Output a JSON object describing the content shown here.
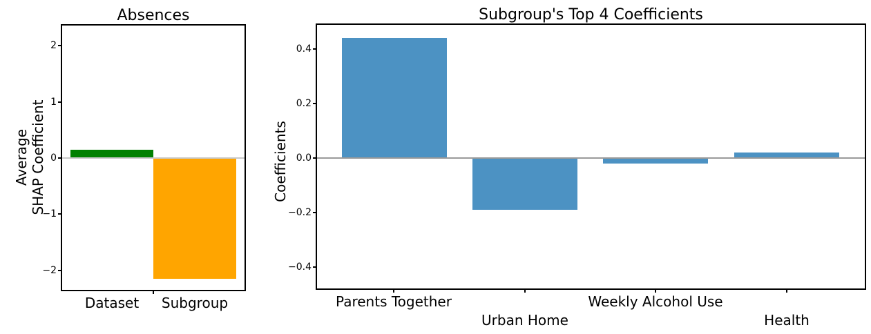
{
  "figure": {
    "background": "#ffffff"
  },
  "chart_data": [
    {
      "type": "bar",
      "title": "Absences",
      "ylabel": "Average\nSHAP Coefficient",
      "categories": [
        "Dataset",
        "Subgroup"
      ],
      "values": [
        0.15,
        -2.15
      ],
      "bar_colors": [
        "#008000",
        "#FFA500"
      ],
      "ytick_labels": [
        "2",
        "1",
        "0",
        "−1",
        "−2"
      ],
      "ytick_values": [
        2,
        1,
        0,
        -1,
        -2
      ],
      "ylim": [
        -2.34,
        2.36
      ],
      "grid": false,
      "legend_position": "none",
      "zero_line_color": "#c8c8c8"
    },
    {
      "type": "bar",
      "title": "Subgroup's Top 4 Coefficients",
      "ylabel": "Coefficients",
      "categories": [
        "Parents Together",
        "Urban Home",
        "Weekly Alcohol Use",
        "Health"
      ],
      "values": [
        0.44,
        -0.19,
        -0.02,
        0.02
      ],
      "bar_colors": [
        "#4C92C3",
        "#4C92C3",
        "#4C92C3",
        "#4C92C3"
      ],
      "ytick_labels": [
        "0.4",
        "0.2",
        "0.0",
        "−0.2",
        "−0.4"
      ],
      "ytick_values": [
        0.4,
        0.2,
        0.0,
        -0.2,
        -0.4
      ],
      "ylim": [
        -0.477,
        0.488
      ],
      "grid": false,
      "legend_position": "none",
      "zero_line_color": "#9a9a9a"
    }
  ]
}
